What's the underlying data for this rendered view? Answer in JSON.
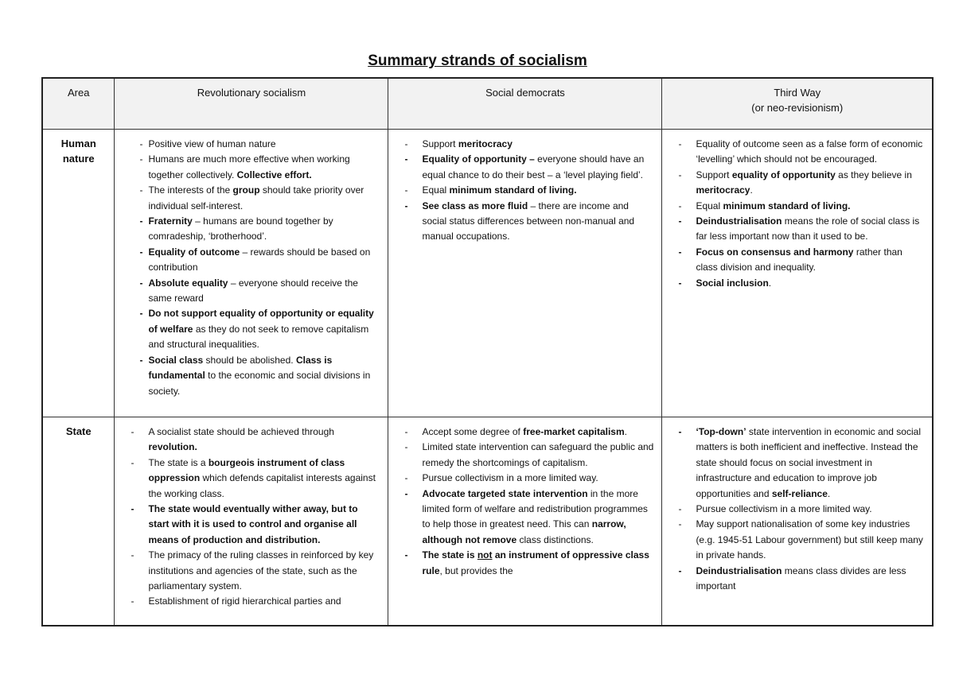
{
  "title": "Summary strands of socialism",
  "headers": [
    "Area",
    "Revolutionary socialism",
    "Social democrats",
    "Third Way",
    "(or neo-revisionism)"
  ],
  "rows": [
    {
      "area": "Human nature",
      "cells": [
        [
          [
            [
              "Positive view of human nature",
              ""
            ]
          ],
          [
            [
              "Humans are much more effective when working together collectively. ",
              ""
            ],
            [
              "Collective effort.",
              "b"
            ]
          ],
          [
            [
              "The interests of the ",
              ""
            ],
            [
              "group",
              "b"
            ],
            [
              " should take priority over individual self-interest.",
              ""
            ]
          ],
          [
            [
              "Fraternity",
              "b"
            ],
            [
              " – humans are bound together by comradeship, ‘brotherhood’.",
              ""
            ]
          ],
          [
            [
              "Equality of outcome",
              "b"
            ],
            [
              " – rewards should be based on contribution",
              ""
            ]
          ],
          [
            [
              "Absolute equality",
              "b"
            ],
            [
              " – everyone should receive the same reward",
              ""
            ]
          ],
          [
            [
              "Do not support equality of opportunity or equality of welfare",
              "b"
            ],
            [
              " as they do not seek to remove capitalism and structural inequalities.",
              ""
            ]
          ],
          [
            [
              "Social class",
              "b"
            ],
            [
              " should be abolished. ",
              ""
            ],
            [
              "Class is fundamental",
              "b"
            ],
            [
              " to the economic and social divisions in society.",
              ""
            ]
          ]
        ],
        [
          [
            [
              "Support ",
              ""
            ],
            [
              "meritocracy",
              "b"
            ]
          ],
          [
            [
              "Equality of opportunity – ",
              "b"
            ],
            [
              "everyone should have an equal chance to do their best – a ‘level playing field’.",
              ""
            ]
          ],
          [
            [
              "Equal ",
              ""
            ],
            [
              "minimum standard of living.",
              "b"
            ]
          ],
          [
            [
              "See class as more fluid",
              "b"
            ],
            [
              " – there are income and social status differences between non-manual and manual occupations.",
              ""
            ]
          ]
        ],
        [
          [
            [
              "Equality of outcome seen as a false form of economic ‘levelling’ which should not be encouraged.",
              ""
            ]
          ],
          [
            [
              "Support ",
              ""
            ],
            [
              "equality of opportunity",
              "b"
            ],
            [
              " as they believe in ",
              ""
            ],
            [
              "meritocracy",
              "b"
            ],
            [
              ".",
              ""
            ]
          ],
          [
            [
              "Equal ",
              ""
            ],
            [
              "minimum standard of living.",
              "b"
            ]
          ],
          [
            [
              "Deindustrialisation",
              "b"
            ],
            [
              " means the role of social class is far less important now than it used to be.",
              ""
            ]
          ],
          [
            [
              "Focus on consensus and harmony",
              "b"
            ],
            [
              " rather than class division and inequality.",
              ""
            ]
          ],
          [
            [
              "Social inclusion",
              "b"
            ],
            [
              ".",
              ""
            ]
          ]
        ]
      ]
    },
    {
      "area": "State",
      "cells": [
        [
          [
            [
              "A socialist state should be achieved through ",
              ""
            ],
            [
              "revolution.",
              "b"
            ]
          ],
          [
            [
              "The state is a ",
              ""
            ],
            [
              "bourgeois instrument of class oppression",
              "b"
            ],
            [
              " which defends capitalist interests against the working class.",
              ""
            ]
          ],
          [
            [
              "The state would eventually wither away, but to start with it is used to control and organise all means of production and distribution.",
              "b"
            ]
          ],
          [
            [
              "The primacy of the ruling classes in reinforced by key institutions and agencies of the state, such as the parliamentary system.",
              ""
            ]
          ],
          [
            [
              "Establishment of rigid hierarchical parties and",
              ""
            ]
          ]
        ],
        [
          [
            [
              "Accept some degree of ",
              ""
            ],
            [
              "free-market capitalism",
              "b"
            ],
            [
              ".",
              ""
            ]
          ],
          [
            [
              "Limited state intervention can safeguard the public and remedy the shortcomings of capitalism.",
              ""
            ]
          ],
          [
            [
              "Pursue collectivism in a more limited way.",
              ""
            ]
          ],
          [
            [
              "Advocate targeted state intervention",
              "b"
            ],
            [
              " in the more limited form of welfare and redistribution programmes to help those in greatest need. This can ",
              ""
            ],
            [
              "narrow, although not remove",
              "b"
            ],
            [
              " class distinctions.",
              ""
            ]
          ],
          [
            [
              "The state is ",
              "b"
            ],
            [
              "not",
              "bu"
            ],
            [
              " an instrument of oppressive class rule",
              "b"
            ],
            [
              ", but provides the",
              ""
            ]
          ]
        ],
        [
          [
            [
              "‘Top-down’",
              "b"
            ],
            [
              " state intervention in economic and social matters is both inefficient and ineffective. Instead the state should focus on social investment in infrastructure and education to improve job opportunities and ",
              ""
            ],
            [
              "self-reliance",
              "b"
            ],
            [
              ".",
              ""
            ]
          ],
          [
            [
              "Pursue collectivism in a more limited way.",
              ""
            ]
          ],
          [
            [
              "May support nationalisation of some key industries (e.g. 1945-51 Labour government) but still keep many in private hands.",
              ""
            ]
          ],
          [
            [
              "Deindustrialisation",
              "b"
            ],
            [
              " means class divides are less important",
              ""
            ]
          ]
        ]
      ]
    }
  ]
}
